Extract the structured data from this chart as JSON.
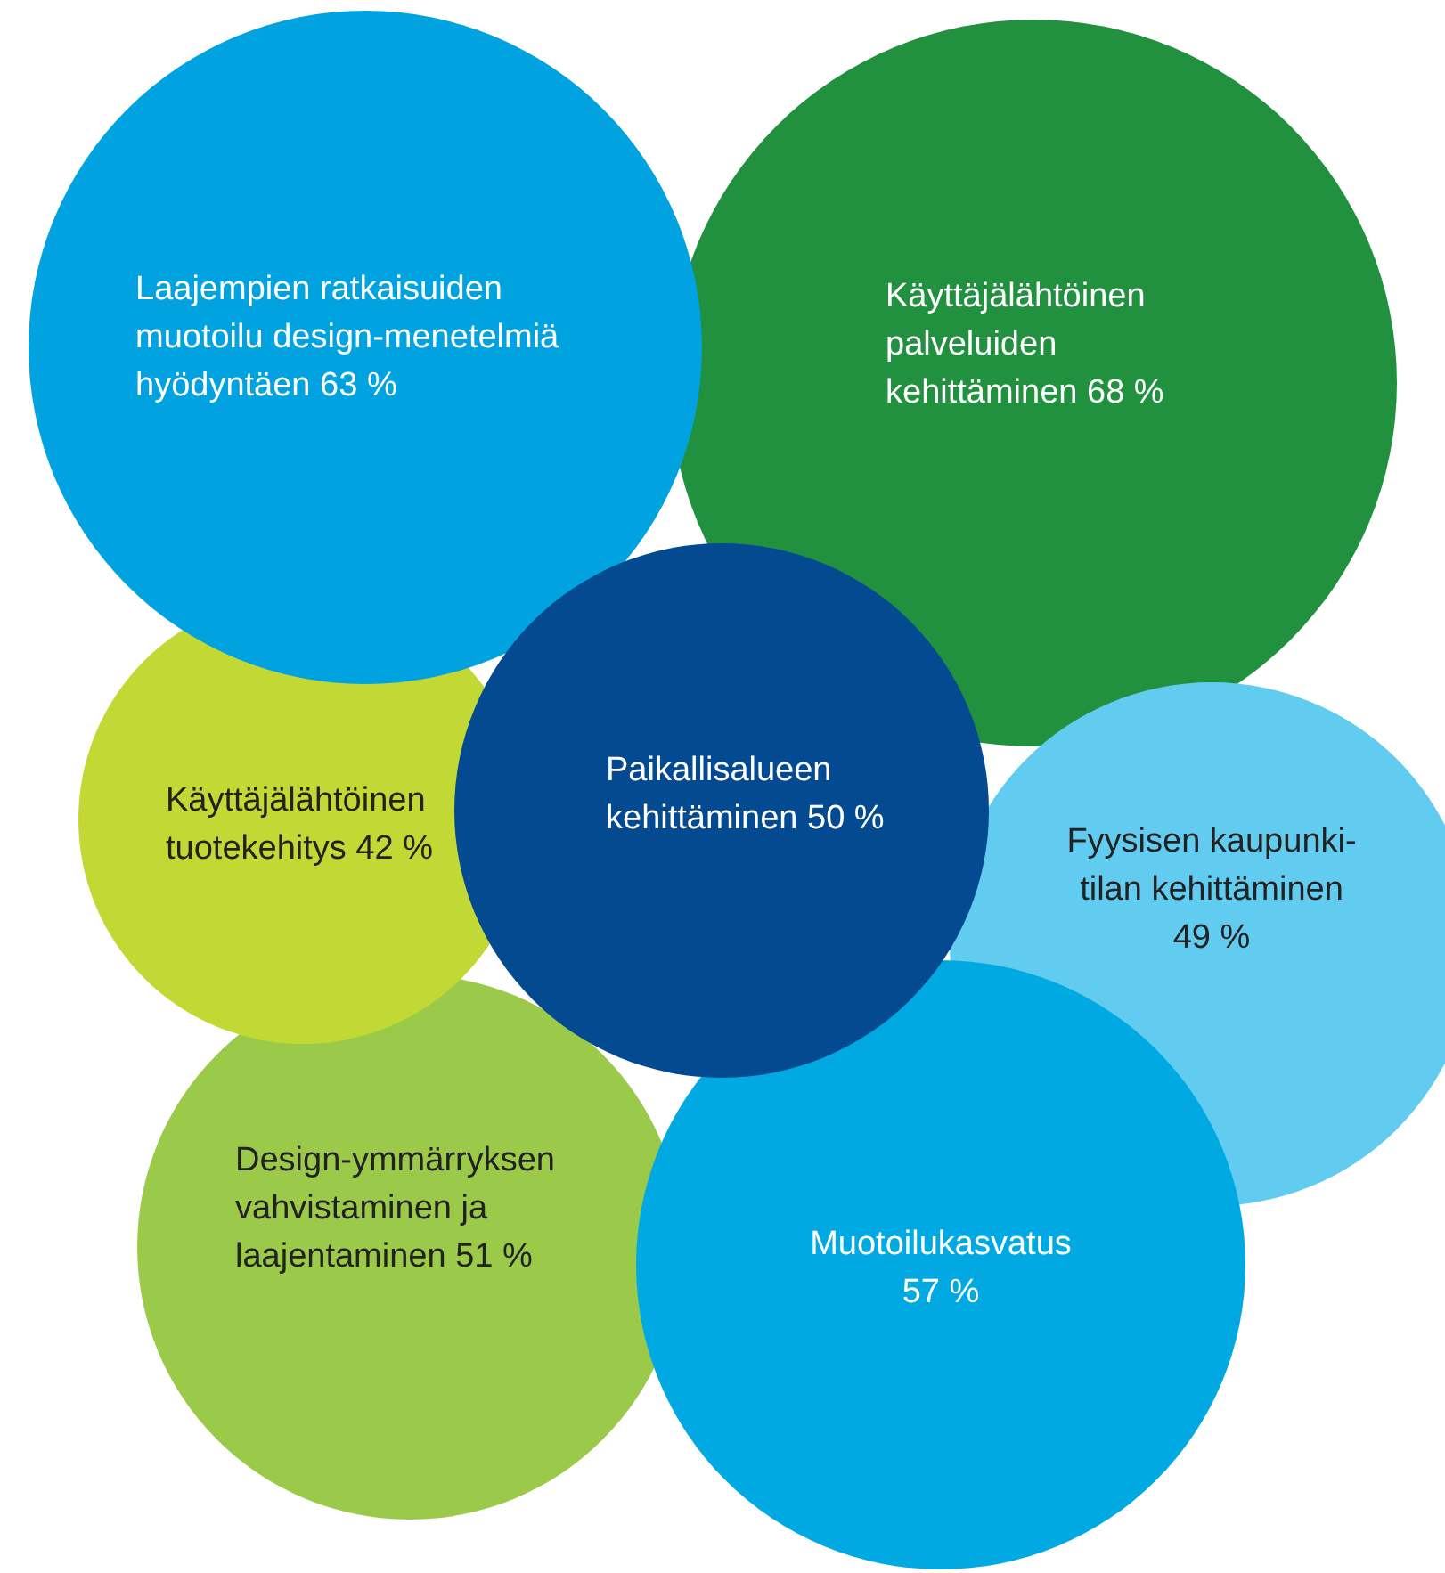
{
  "chart_data": {
    "type": "other",
    "categories": [
      "Laajempien ratkaisuiden\nmuotoilu design-menetelmiä\nhyödyntäen",
      "Käyttäjälähtöinen\npalveluiden\nkehittäminen",
      "Käyttäjälähtöinen\ntuotekehitys",
      "Paikallisalueen\nkehittäminen",
      "Fyysisen kaupunki-\ntilan kehittäminen",
      "Design-ymmärryksen\nvahvistaminen ja\nlaajentaminen",
      "Muotoilukasvatus"
    ],
    "values": [
      63,
      68,
      42,
      50,
      49,
      51,
      57
    ],
    "value_labels": [
      "63 %",
      "68 %",
      "42 %",
      "50 %",
      "49 %",
      "51 %",
      "57 %"
    ],
    "colors": [
      "#00a3e0",
      "#21913f",
      "#c2d935",
      "#034a90",
      "#62cbf0",
      "#9bc94a",
      "#00a9e2"
    ]
  }
}
